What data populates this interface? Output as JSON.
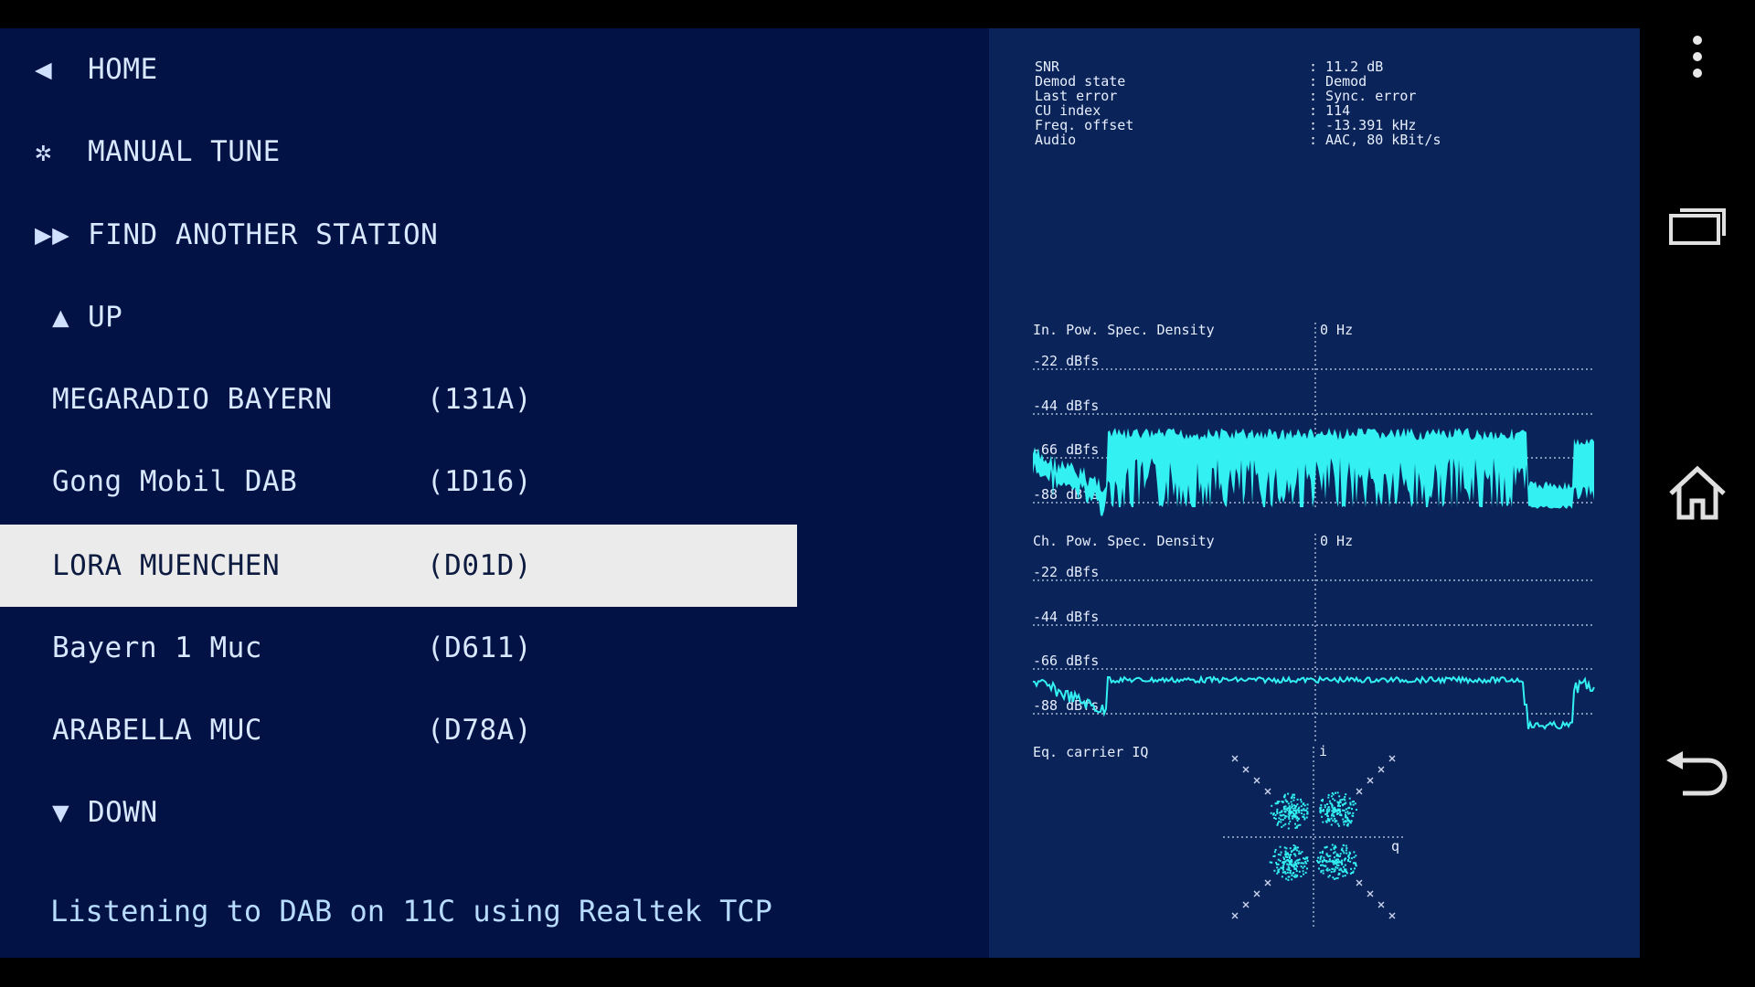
{
  "menu": {
    "home": "HOME",
    "manual_tune": "MANUAL TUNE",
    "find_station": "FIND ANOTHER STATION",
    "up": "UP",
    "down": "DOWN",
    "stations": [
      {
        "name": "MEGARADIO BAYERN",
        "code": "(131A)"
      },
      {
        "name": "Gong Mobil DAB",
        "code": "(1D16)"
      },
      {
        "name": "LORA MUENCHEN",
        "code": "(D01D)"
      },
      {
        "name": "Bayern 1 Muc",
        "code": "(D611)"
      },
      {
        "name": "ARABELLA MUC",
        "code": "(D78A)"
      }
    ],
    "selected_index": 2
  },
  "status": "Listening to DAB on 11C using Realtek TCP",
  "diagnostics": {
    "stats": [
      {
        "key": "SNR",
        "value": ": 11.2 dB"
      },
      {
        "key": "Demod state",
        "value": ": Demod"
      },
      {
        "key": "Last error",
        "value": ": Sync. error"
      },
      {
        "key": "CU index",
        "value": ": 114"
      },
      {
        "key": "Freq. offset",
        "value": ": -13.391 kHz"
      },
      {
        "key": "Audio",
        "value": ": AAC, 80 kBit/s"
      }
    ],
    "input_psd": {
      "title": "In. Pow. Spec. Density",
      "center": "0 Hz",
      "levels": [
        "-22 dBfs",
        "-44 dBfs",
        "-66 dBfs",
        "-88 dBfs"
      ]
    },
    "channel_psd": {
      "title": "Ch. Pow. Spec. Density",
      "center": "0 Hz",
      "levels": [
        "-22 dBfs",
        "-44 dBfs",
        "-66 dBfs",
        "-88 dBfs"
      ]
    },
    "iq": {
      "title": "Eq. carrier IQ",
      "i_label": "i",
      "q_label": "q"
    }
  },
  "colors": {
    "background": "#031245",
    "panel": "#0a2358",
    "trace": "#33f0f2",
    "selected_row": "#ebebeb"
  },
  "navbar": {
    "icons": [
      "overflow-menu-icon",
      "recent-apps-icon",
      "home-icon",
      "back-icon"
    ]
  }
}
